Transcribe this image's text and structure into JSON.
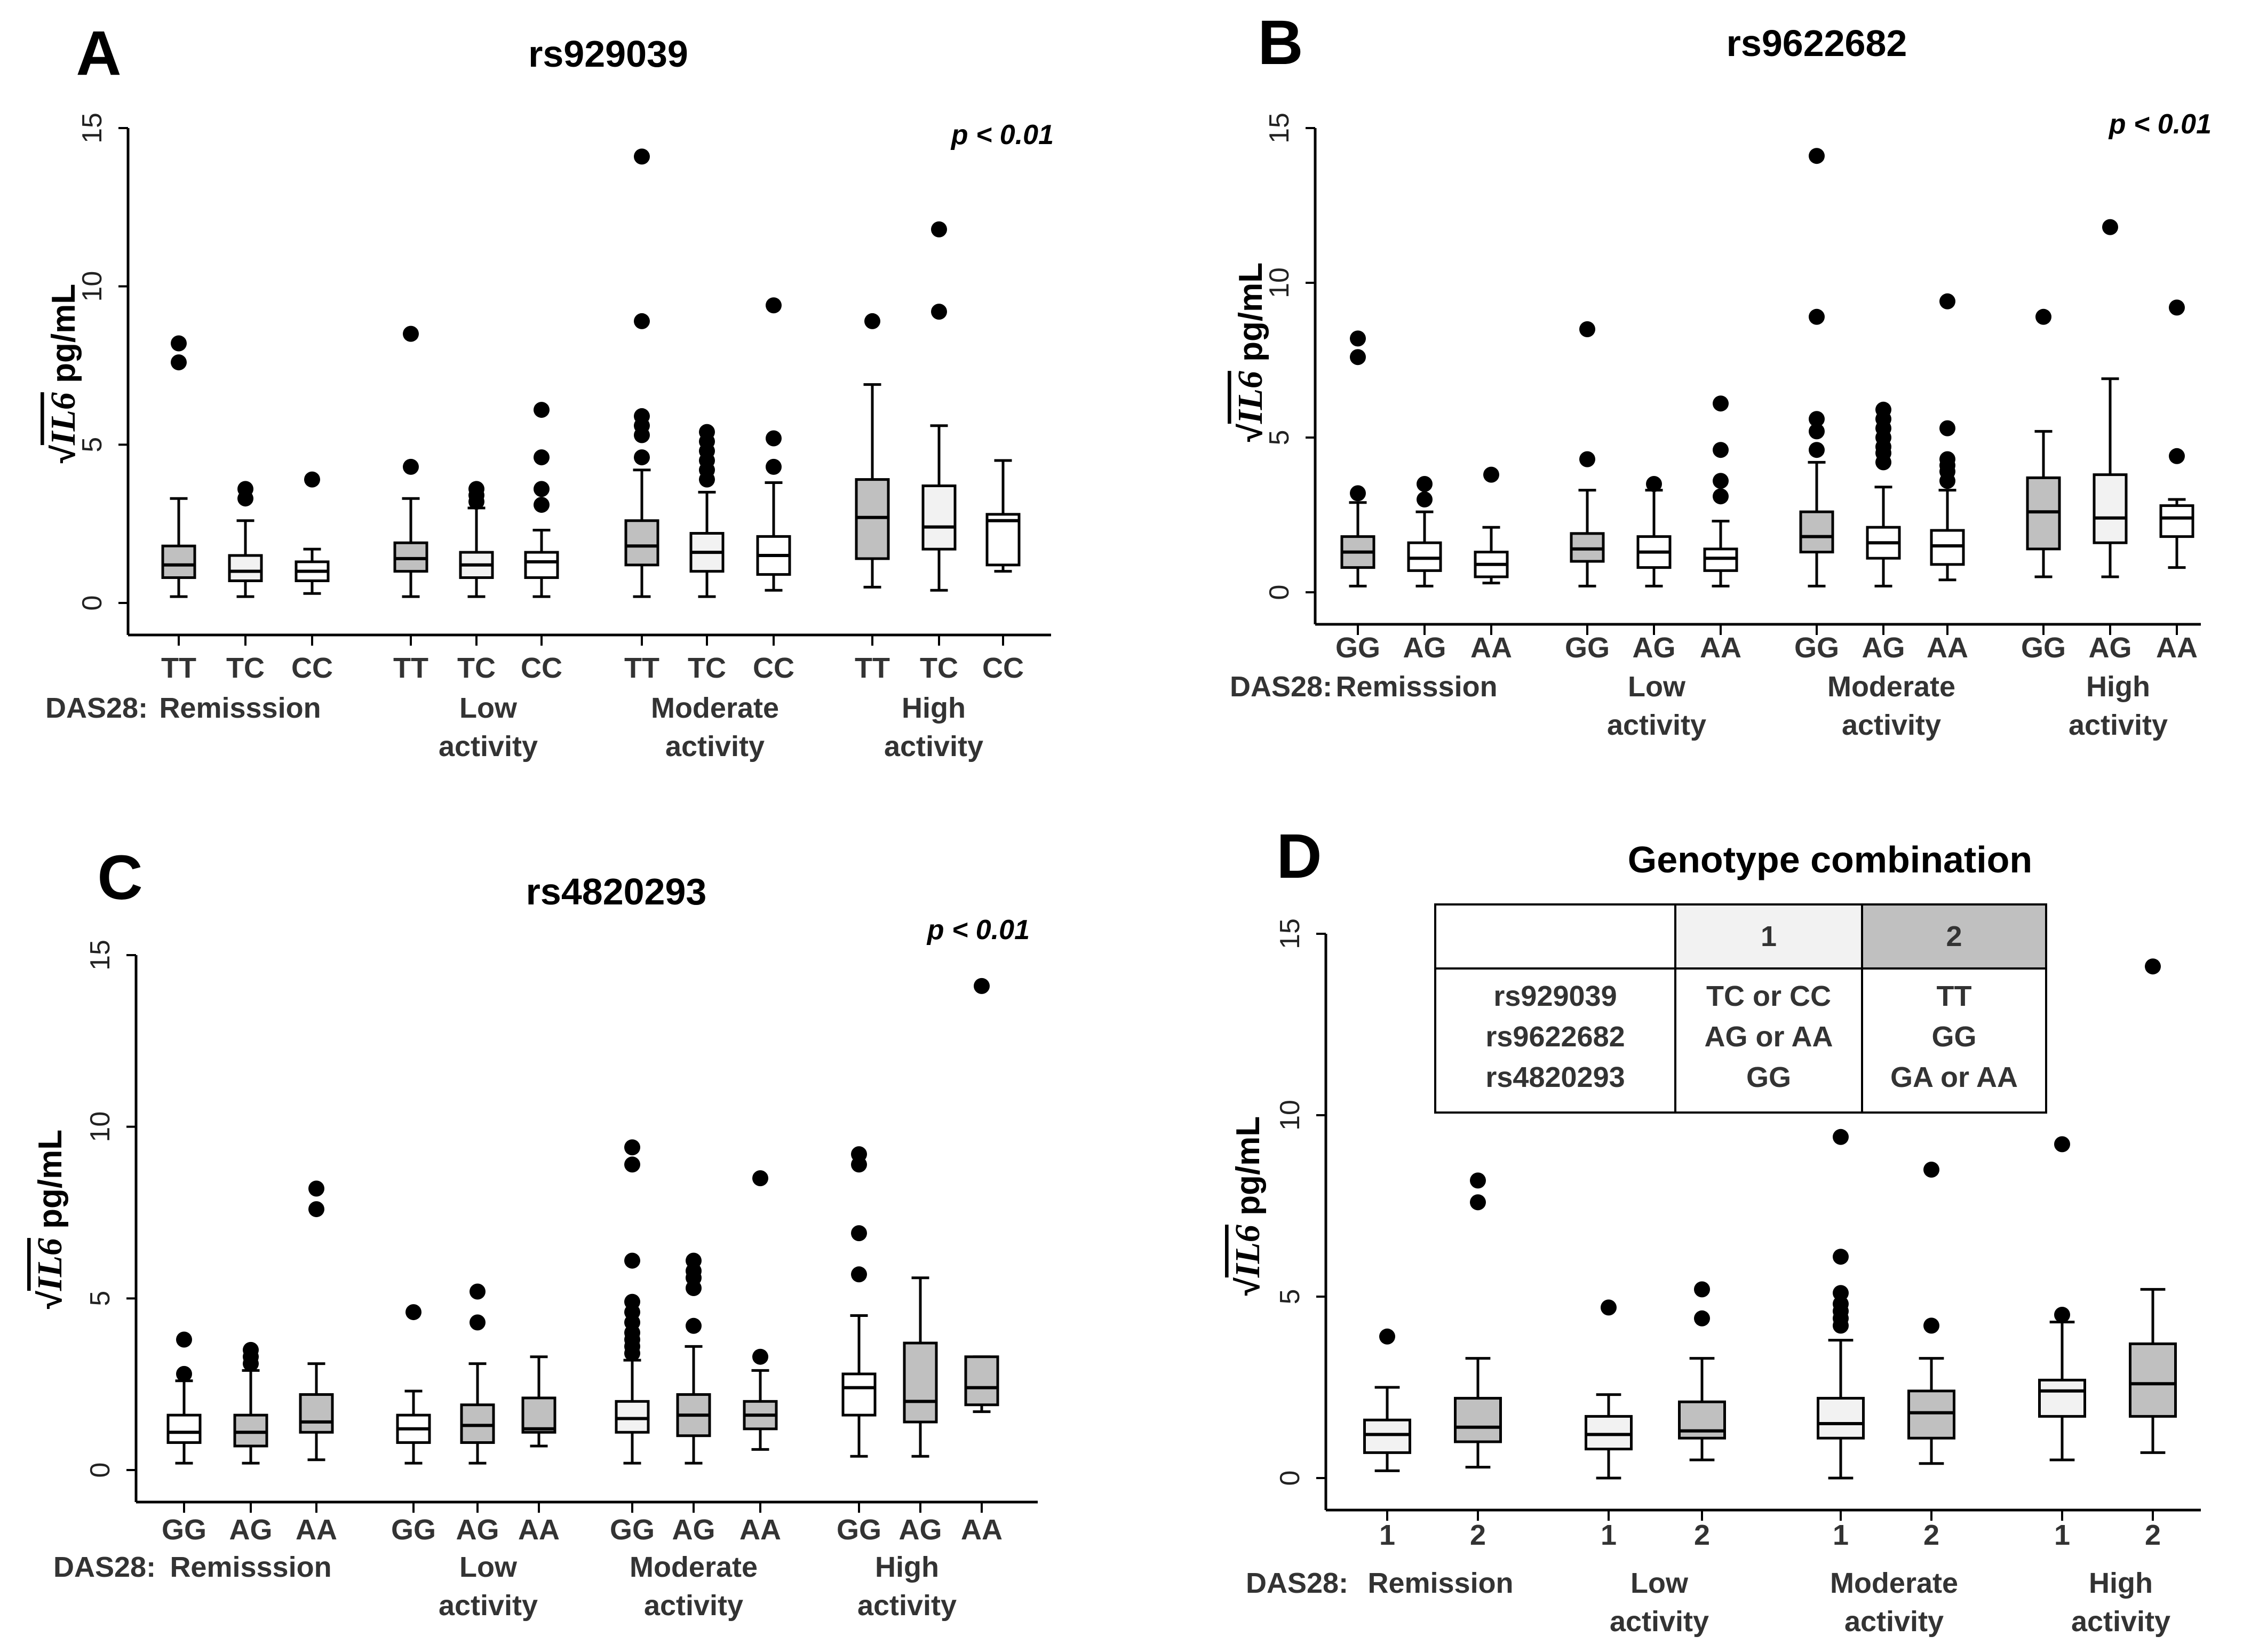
{
  "colors": {
    "dark": "#c0c0c0",
    "light": "#f2f2f2",
    "white": "#ffffff",
    "line": "#000000"
  },
  "ylabel": {
    "sqrt_symbol": "√",
    "var": "IL6",
    "unit": " pg/mL"
  },
  "das28_label": "DAS28:",
  "chart_data": [
    {
      "panel": "A",
      "type": "box",
      "title": "rs929039",
      "p_value": "p < 0.01",
      "ylim": [
        0,
        15
      ],
      "yticks": [
        "0",
        "5",
        "10",
        "15"
      ],
      "groups": [
        [
          "Remisssion"
        ],
        [
          "Low",
          "activity"
        ],
        [
          "Moderate",
          "activity"
        ],
        [
          "High",
          "activity"
        ]
      ],
      "categories": [
        "TT",
        "TC",
        "CC"
      ],
      "boxes": [
        {
          "g": 0,
          "c": 0,
          "fill": "dark",
          "min": 0.2,
          "q1": 0.8,
          "med": 1.2,
          "q3": 1.8,
          "max": 3.3,
          "out": [
            7.6,
            8.2
          ]
        },
        {
          "g": 0,
          "c": 1,
          "fill": "light",
          "min": 0.2,
          "q1": 0.7,
          "med": 1.0,
          "q3": 1.5,
          "max": 2.6,
          "out": [
            3.3,
            3.6
          ]
        },
        {
          "g": 0,
          "c": 2,
          "fill": "white",
          "min": 0.3,
          "q1": 0.7,
          "med": 1.0,
          "q3": 1.3,
          "max": 1.7,
          "out": [
            3.9
          ]
        },
        {
          "g": 1,
          "c": 0,
          "fill": "dark",
          "min": 0.2,
          "q1": 1.0,
          "med": 1.4,
          "q3": 1.9,
          "max": 3.3,
          "out": [
            4.3,
            8.5
          ]
        },
        {
          "g": 1,
          "c": 1,
          "fill": "light",
          "min": 0.2,
          "q1": 0.8,
          "med": 1.2,
          "q3": 1.6,
          "max": 3.0,
          "out": [
            3.2,
            3.4,
            3.6
          ]
        },
        {
          "g": 1,
          "c": 2,
          "fill": "white",
          "min": 0.2,
          "q1": 0.8,
          "med": 1.3,
          "q3": 1.6,
          "max": 2.3,
          "out": [
            3.1,
            3.6,
            4.6,
            6.1
          ]
        },
        {
          "g": 2,
          "c": 0,
          "fill": "dark",
          "min": 0.2,
          "q1": 1.2,
          "med": 1.8,
          "q3": 2.6,
          "max": 4.2,
          "out": [
            4.6,
            5.3,
            5.6,
            5.9,
            8.9,
            14.1
          ]
        },
        {
          "g": 2,
          "c": 1,
          "fill": "light",
          "min": 0.2,
          "q1": 1.0,
          "med": 1.6,
          "q3": 2.2,
          "max": 3.5,
          "out": [
            3.9,
            4.2,
            4.5,
            4.8,
            5.1,
            5.4
          ]
        },
        {
          "g": 2,
          "c": 2,
          "fill": "white",
          "min": 0.4,
          "q1": 0.9,
          "med": 1.5,
          "q3": 2.1,
          "max": 3.8,
          "out": [
            4.3,
            5.2,
            9.4
          ]
        },
        {
          "g": 3,
          "c": 0,
          "fill": "dark",
          "min": 0.5,
          "q1": 1.4,
          "med": 2.7,
          "q3": 3.9,
          "max": 6.9,
          "out": [
            8.9
          ]
        },
        {
          "g": 3,
          "c": 1,
          "fill": "light",
          "min": 0.4,
          "q1": 1.7,
          "med": 2.4,
          "q3": 3.7,
          "max": 5.6,
          "out": [
            9.2,
            11.8
          ]
        },
        {
          "g": 3,
          "c": 2,
          "fill": "white",
          "min": 1.0,
          "q1": 1.2,
          "med": 2.6,
          "q3": 2.8,
          "max": 4.5,
          "out": []
        }
      ]
    },
    {
      "panel": "B",
      "type": "box",
      "title": "rs9622682",
      "p_value": "p < 0.01",
      "ylim": [
        0,
        15
      ],
      "yticks": [
        "0",
        "5",
        "10",
        "15"
      ],
      "groups": [
        [
          "Remisssion"
        ],
        [
          "Low",
          "activity"
        ],
        [
          "Moderate",
          "activity"
        ],
        [
          "High",
          "activity"
        ]
      ],
      "categories": [
        "GG",
        "AG",
        "AA"
      ],
      "boxes": [
        {
          "g": 0,
          "c": 0,
          "fill": "dark",
          "min": 0.2,
          "q1": 0.8,
          "med": 1.3,
          "q3": 1.8,
          "max": 2.9,
          "out": [
            3.2,
            7.6,
            8.2
          ]
        },
        {
          "g": 0,
          "c": 1,
          "fill": "white",
          "min": 0.2,
          "q1": 0.7,
          "med": 1.1,
          "q3": 1.6,
          "max": 2.6,
          "out": [
            3.0,
            3.5
          ]
        },
        {
          "g": 0,
          "c": 2,
          "fill": "white",
          "min": 0.3,
          "q1": 0.5,
          "med": 0.9,
          "q3": 1.3,
          "max": 2.1,
          "out": [
            3.8
          ]
        },
        {
          "g": 1,
          "c": 0,
          "fill": "dark",
          "min": 0.2,
          "q1": 1.0,
          "med": 1.4,
          "q3": 1.9,
          "max": 3.3,
          "out": [
            4.3,
            8.5
          ]
        },
        {
          "g": 1,
          "c": 1,
          "fill": "white",
          "min": 0.2,
          "q1": 0.8,
          "med": 1.3,
          "q3": 1.8,
          "max": 3.3,
          "out": [
            3.5
          ]
        },
        {
          "g": 1,
          "c": 2,
          "fill": "white",
          "min": 0.2,
          "q1": 0.7,
          "med": 1.1,
          "q3": 1.4,
          "max": 2.3,
          "out": [
            3.1,
            3.6,
            4.6,
            6.1
          ]
        },
        {
          "g": 2,
          "c": 0,
          "fill": "dark",
          "min": 0.2,
          "q1": 1.3,
          "med": 1.8,
          "q3": 2.6,
          "max": 4.2,
          "out": [
            4.6,
            5.2,
            5.6,
            8.9,
            14.1
          ]
        },
        {
          "g": 2,
          "c": 1,
          "fill": "white",
          "min": 0.2,
          "q1": 1.1,
          "med": 1.6,
          "q3": 2.1,
          "max": 3.4,
          "out": [
            4.2,
            4.5,
            4.7,
            5.0,
            5.3,
            5.6,
            5.9
          ]
        },
        {
          "g": 2,
          "c": 2,
          "fill": "white",
          "min": 0.4,
          "q1": 0.9,
          "med": 1.5,
          "q3": 2.0,
          "max": 3.3,
          "out": [
            3.6,
            3.9,
            4.1,
            4.3,
            5.3,
            9.4
          ]
        },
        {
          "g": 3,
          "c": 0,
          "fill": "dark",
          "min": 0.5,
          "q1": 1.4,
          "med": 2.6,
          "q3": 3.7,
          "max": 5.2,
          "out": [
            8.9
          ]
        },
        {
          "g": 3,
          "c": 1,
          "fill": "light",
          "min": 0.5,
          "q1": 1.6,
          "med": 2.4,
          "q3": 3.8,
          "max": 6.9,
          "out": [
            11.8
          ]
        },
        {
          "g": 3,
          "c": 2,
          "fill": "white",
          "min": 0.8,
          "q1": 1.8,
          "med": 2.4,
          "q3": 2.8,
          "max": 3.0,
          "out": [
            4.4,
            9.2
          ]
        }
      ]
    },
    {
      "panel": "C",
      "type": "box",
      "title": "rs4820293",
      "p_value": "p < 0.01",
      "ylim": [
        0,
        15
      ],
      "yticks": [
        "0",
        "5",
        "10",
        "15"
      ],
      "groups": [
        [
          "Remisssion"
        ],
        [
          "Low",
          "activity"
        ],
        [
          "Moderate",
          "activity"
        ],
        [
          "High",
          "activity"
        ]
      ],
      "categories": [
        "GG",
        "AG",
        "AA"
      ],
      "boxes": [
        {
          "g": 0,
          "c": 0,
          "fill": "white",
          "min": 0.2,
          "q1": 0.8,
          "med": 1.1,
          "q3": 1.6,
          "max": 2.6,
          "out": [
            2.8,
            3.8
          ]
        },
        {
          "g": 0,
          "c": 1,
          "fill": "dark",
          "min": 0.2,
          "q1": 0.7,
          "med": 1.1,
          "q3": 1.6,
          "max": 2.9,
          "out": [
            3.1,
            3.3,
            3.5
          ]
        },
        {
          "g": 0,
          "c": 2,
          "fill": "dark",
          "min": 0.3,
          "q1": 1.1,
          "med": 1.4,
          "q3": 2.2,
          "max": 3.1,
          "out": [
            7.6,
            8.2
          ]
        },
        {
          "g": 1,
          "c": 0,
          "fill": "white",
          "min": 0.2,
          "q1": 0.8,
          "med": 1.2,
          "q3": 1.6,
          "max": 2.3,
          "out": [
            4.6
          ]
        },
        {
          "g": 1,
          "c": 1,
          "fill": "dark",
          "min": 0.2,
          "q1": 0.8,
          "med": 1.3,
          "q3": 1.9,
          "max": 3.1,
          "out": [
            4.3,
            5.2
          ]
        },
        {
          "g": 1,
          "c": 2,
          "fill": "dark",
          "min": 0.7,
          "q1": 1.1,
          "med": 1.2,
          "q3": 2.1,
          "max": 3.3,
          "out": []
        },
        {
          "g": 2,
          "c": 0,
          "fill": "light",
          "min": 0.2,
          "q1": 1.1,
          "med": 1.5,
          "q3": 2.0,
          "max": 3.2,
          "out": [
            3.4,
            3.6,
            3.8,
            4.0,
            4.3,
            4.6,
            4.9,
            6.1,
            8.9,
            9.4
          ]
        },
        {
          "g": 2,
          "c": 1,
          "fill": "dark",
          "min": 0.2,
          "q1": 1.0,
          "med": 1.6,
          "q3": 2.2,
          "max": 3.6,
          "out": [
            4.2,
            5.3,
            5.6,
            5.8,
            6.1
          ]
        },
        {
          "g": 2,
          "c": 2,
          "fill": "dark",
          "min": 0.6,
          "q1": 1.2,
          "med": 1.6,
          "q3": 2.0,
          "max": 2.9,
          "out": [
            3.3,
            8.5
          ]
        },
        {
          "g": 3,
          "c": 0,
          "fill": "white",
          "min": 0.4,
          "q1": 1.6,
          "med": 2.4,
          "q3": 2.8,
          "max": 4.5,
          "out": [
            5.7,
            6.9,
            8.9,
            9.2
          ]
        },
        {
          "g": 3,
          "c": 1,
          "fill": "dark",
          "min": 0.4,
          "q1": 1.4,
          "med": 2.0,
          "q3": 3.7,
          "max": 5.6,
          "out": []
        },
        {
          "g": 3,
          "c": 2,
          "fill": "dark",
          "min": 1.7,
          "q1": 1.9,
          "med": 2.4,
          "q3": 3.3,
          "max": 3.3,
          "out": [
            14.1
          ]
        }
      ]
    },
    {
      "panel": "D",
      "type": "box",
      "title": "Genotype combination",
      "ylim": [
        0,
        15
      ],
      "yticks": [
        "0",
        "5",
        "10",
        "15"
      ],
      "groups": [
        [
          "Remission"
        ],
        [
          "Low",
          "activity"
        ],
        [
          "Moderate",
          "activity"
        ],
        [
          "High",
          "activity"
        ]
      ],
      "categories": [
        "1",
        "2"
      ],
      "boxes": [
        {
          "g": 0,
          "c": 0,
          "fill": "light",
          "min": 0.2,
          "q1": 0.7,
          "med": 1.2,
          "q3": 1.6,
          "max": 2.5,
          "out": [
            3.9
          ]
        },
        {
          "g": 0,
          "c": 1,
          "fill": "dark",
          "min": 0.3,
          "q1": 1.0,
          "med": 1.4,
          "q3": 2.2,
          "max": 3.3,
          "out": [
            7.6,
            8.2
          ]
        },
        {
          "g": 1,
          "c": 0,
          "fill": "light",
          "min": 0.0,
          "q1": 0.8,
          "med": 1.2,
          "q3": 1.7,
          "max": 2.3,
          "out": [
            4.7
          ]
        },
        {
          "g": 1,
          "c": 1,
          "fill": "dark",
          "min": 0.5,
          "q1": 1.1,
          "med": 1.3,
          "q3": 2.1,
          "max": 3.3,
          "out": [
            4.4,
            5.2
          ]
        },
        {
          "g": 2,
          "c": 0,
          "fill": "light",
          "min": 0.0,
          "q1": 1.1,
          "med": 1.5,
          "q3": 2.2,
          "max": 3.8,
          "out": [
            4.2,
            4.4,
            4.6,
            4.8,
            5.1,
            6.1,
            9.4
          ]
        },
        {
          "g": 2,
          "c": 1,
          "fill": "dark",
          "min": 0.4,
          "q1": 1.1,
          "med": 1.8,
          "q3": 2.4,
          "max": 3.3,
          "out": [
            4.2,
            8.5
          ]
        },
        {
          "g": 3,
          "c": 0,
          "fill": "light",
          "min": 0.5,
          "q1": 1.7,
          "med": 2.4,
          "q3": 2.7,
          "max": 4.3,
          "out": [
            4.5,
            9.2
          ]
        },
        {
          "g": 3,
          "c": 1,
          "fill": "dark",
          "min": 0.7,
          "q1": 1.7,
          "med": 2.6,
          "q3": 3.7,
          "max": 5.2,
          "out": [
            14.1
          ]
        }
      ],
      "legend_table": {
        "headers": [
          "",
          "1",
          "2"
        ],
        "rows": [
          [
            "rs929039",
            "TC or CC",
            "TT"
          ],
          [
            "rs9622682",
            "AG or AA",
            "GG"
          ],
          [
            "rs4820293",
            "GG",
            "GA or AA"
          ]
        ]
      }
    }
  ]
}
